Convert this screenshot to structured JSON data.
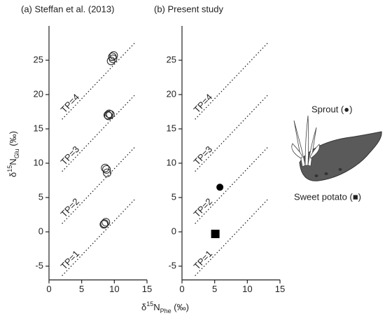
{
  "chart_data": [
    {
      "type": "scatter",
      "title": "(a) Steffan et al. (2013)",
      "y_label": [
        "δ",
        "15",
        "N",
        "Glu",
        " (‰)"
      ],
      "x_label": [
        "δ",
        "15",
        "N",
        "Phe",
        " (‰)"
      ],
      "xlim": [
        0,
        15
      ],
      "ylim": [
        -7,
        30
      ],
      "xticks": [
        0,
        5,
        10,
        15
      ],
      "yticks": [
        -5,
        0,
        5,
        10,
        15,
        20,
        25
      ],
      "tp_lines": [
        {
          "label": "TP=1",
          "x": [
            2,
            13.3
          ],
          "values": [
            -6.4,
            4.9
          ]
        },
        {
          "label": "TP=2",
          "x": [
            2,
            13.3
          ],
          "values": [
            1.2,
            12.5
          ]
        },
        {
          "label": "TP=3",
          "x": [
            2,
            13.3
          ],
          "values": [
            8.8,
            20.1
          ]
        },
        {
          "label": "TP=4",
          "x": [
            2,
            13.3
          ],
          "values": [
            16.4,
            27.7
          ]
        }
      ],
      "series": [
        {
          "marker": "circle",
          "filled": false,
          "color": "#222222",
          "x": [
            9.7,
            9.9,
            9.5,
            9.8,
            9.2,
            9.0,
            9.4,
            9.1,
            8.6,
            8.8,
            8.9,
            8.5,
            8.7,
            8.4
          ],
          "values": [
            25.5,
            25.7,
            24.9,
            25.2,
            17.2,
            17.0,
            17.1,
            16.9,
            9.3,
            9.1,
            8.6,
            1.2,
            1.4,
            1.1
          ]
        }
      ]
    },
    {
      "type": "scatter",
      "title": "(b) Present study",
      "xlim": [
        0,
        15
      ],
      "ylim": [
        -7,
        30
      ],
      "xticks": [
        0,
        5,
        10,
        15
      ],
      "yticks": [
        -5,
        0,
        5,
        10,
        15,
        20,
        25
      ],
      "tp_lines": [
        {
          "label": "TP=1",
          "x": [
            2,
            13.3
          ],
          "values": [
            -6.4,
            4.9
          ]
        },
        {
          "label": "TP=2",
          "x": [
            2,
            13.3
          ],
          "values": [
            1.2,
            12.5
          ]
        },
        {
          "label": "TP=3",
          "x": [
            2,
            13.3
          ],
          "values": [
            8.8,
            20.1
          ]
        },
        {
          "label": "TP=4",
          "x": [
            2,
            13.3
          ],
          "values": [
            16.4,
            27.7
          ]
        }
      ],
      "series": [
        {
          "marker": "circle",
          "filled": true,
          "color": "#000000",
          "x": [
            5.8
          ],
          "values": [
            6.5
          ]
        },
        {
          "marker": "square",
          "filled": true,
          "color": "#000000",
          "x": [
            5.1
          ],
          "values": [
            -0.3
          ]
        }
      ],
      "annotations": [
        "Sprout (●)",
        "Sweet potato (■)"
      ]
    }
  ]
}
